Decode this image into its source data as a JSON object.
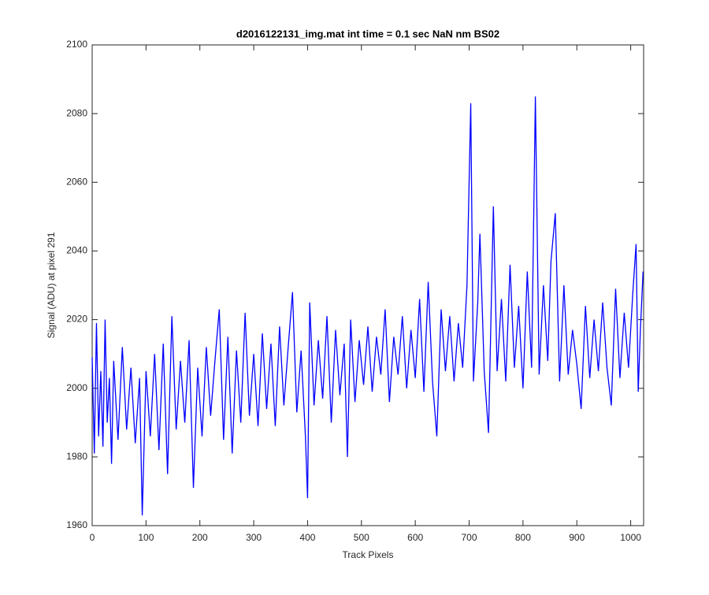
{
  "chart_data": {
    "type": "line",
    "title": "d2016122131_img.mat int time = 0.1 sec  NaN nm BS02",
    "x_label": "Track Pixels",
    "y_label": "Signal (ADU) at pixel 291",
    "x": [
      0,
      4,
      8,
      12,
      16,
      20,
      24,
      28,
      32,
      36,
      40,
      48,
      56,
      64,
      72,
      80,
      88,
      93,
      100,
      108,
      116,
      124,
      132,
      140,
      148,
      156,
      164,
      172,
      180,
      188,
      196,
      204,
      212,
      220,
      228,
      236,
      244,
      252,
      260,
      268,
      276,
      284,
      292,
      300,
      308,
      316,
      324,
      332,
      340,
      348,
      356,
      364,
      372,
      380,
      388,
      396,
      400,
      404,
      412,
      420,
      428,
      436,
      444,
      452,
      460,
      468,
      474,
      480,
      488,
      496,
      504,
      512,
      520,
      528,
      536,
      544,
      552,
      560,
      568,
      576,
      584,
      592,
      600,
      608,
      616,
      624,
      632,
      640,
      648,
      656,
      664,
      672,
      680,
      688,
      696,
      703,
      708,
      716,
      720,
      728,
      736,
      745,
      752,
      760,
      768,
      776,
      784,
      792,
      800,
      808,
      816,
      823,
      830,
      838,
      846,
      852,
      860,
      868,
      876,
      884,
      892,
      900,
      908,
      916,
      924,
      932,
      940,
      948,
      956,
      964,
      972,
      980,
      988,
      996,
      1004,
      1010,
      1014,
      1018,
      1023
    ],
    "series": [
      {
        "color": "#0000ff",
        "values": [
          2009,
          1981,
          2019,
          1986,
          2005,
          1983,
          2020,
          1990,
          2003,
          1978,
          2008,
          1985,
          2012,
          1988,
          2006,
          1984,
          2003,
          1963,
          2005,
          1986,
          2010,
          1982,
          2013,
          1975,
          2021,
          1988,
          2008,
          1990,
          2014,
          1971,
          2006,
          1986,
          2012,
          1992,
          2008,
          2023,
          1985,
          2015,
          1981,
          2011,
          1990,
          2022,
          1992,
          2010,
          1989,
          2016,
          1994,
          2013,
          1989,
          2018,
          1995,
          2012,
          2028,
          1993,
          2011,
          1986,
          1968,
          2025,
          1995,
          2014,
          1997,
          2021,
          1990,
          2017,
          1998,
          2013,
          1980,
          2020,
          1996,
          2014,
          2001,
          2018,
          1999,
          2015,
          2004,
          2023,
          1996,
          2015,
          2004,
          2021,
          2000,
          2017,
          2003,
          2026,
          1999,
          2031,
          2002,
          1986,
          2023,
          2005,
          2021,
          2002,
          2019,
          2006,
          2030,
          2083,
          2002,
          2025,
          2045,
          2005,
          1987,
          2053,
          2005,
          2026,
          2002,
          2036,
          2006,
          2024,
          2000,
          2034,
          2006,
          2085,
          2004,
          2030,
          2008,
          2037,
          2051,
          2002,
          2030,
          2004,
          2017,
          2007,
          1994,
          2024,
          2003,
          2020,
          2005,
          2025,
          2006,
          1995,
          2029,
          2003,
          2022,
          2006,
          2028,
          2042,
          1999,
          2017,
          2034
        ]
      }
    ],
    "xlim": [
      0,
      1024
    ],
    "xticks": [
      0,
      100,
      200,
      300,
      400,
      500,
      600,
      700,
      800,
      900,
      1000
    ],
    "ylim": [
      1960,
      2100
    ],
    "yticks": [
      1960,
      1980,
      2000,
      2020,
      2040,
      2060,
      2080,
      2100
    ]
  }
}
